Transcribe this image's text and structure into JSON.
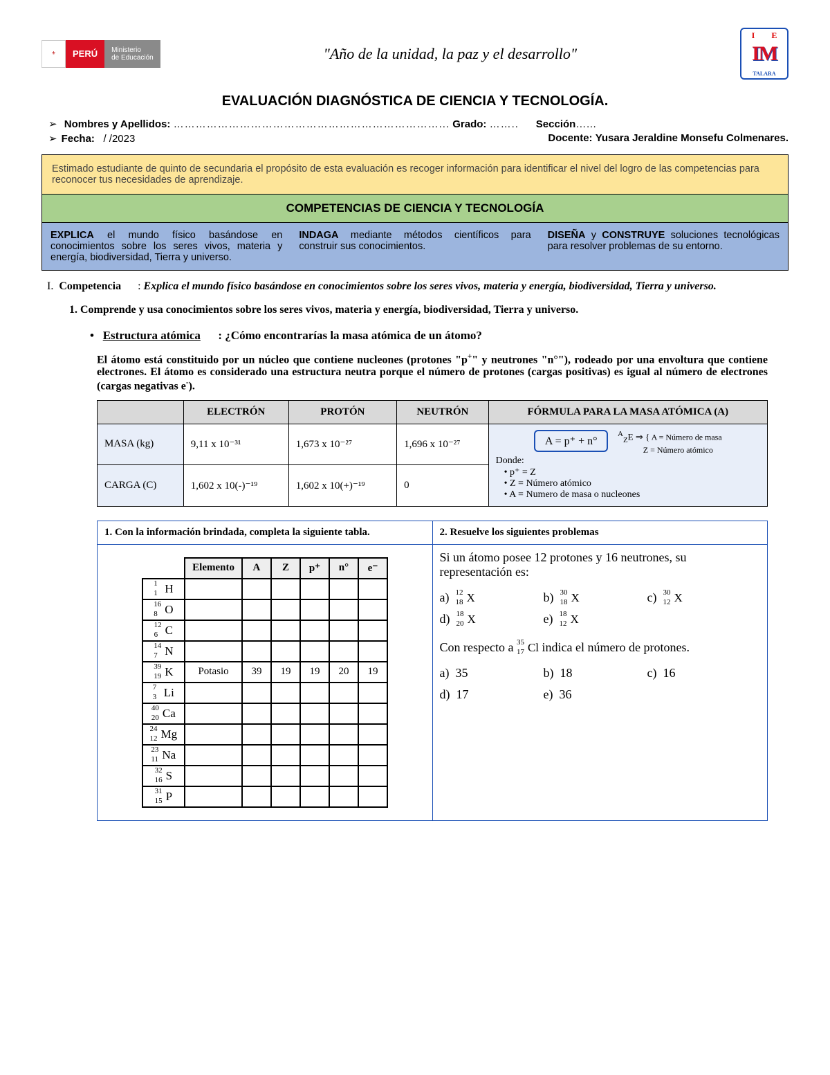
{
  "header": {
    "peru": "PERÚ",
    "ministry1": "Ministerio",
    "ministry2": "de Educación",
    "motto": "\"Año de la unidad, la paz y el desarrollo\"",
    "school_im": "IM",
    "school_loc": "TALARA"
  },
  "title": "EVALUACIÓN DIAGNÓSTICA DE CIENCIA Y TECNOLOGÍA.",
  "info": {
    "names_label": "Nombres y Apellidos:",
    "grade_label": "Grado:",
    "section_label": "Sección",
    "date_label": "Fecha:",
    "date_val": "/    /2023",
    "teacher_label": "Docente:",
    "teacher_name": "Yusara Jeraldine Monsefu Colmenares."
  },
  "yellow": "Estimado estudiante de quinto de secundaria el propósito de esta evaluación es recoger información para identificar el nivel del logro de las competencias para reconocer tus necesidades de aprendizaje.",
  "green": "COMPETENCIAS DE CIENCIA Y TECNOLOGÍA",
  "comp": {
    "c1b": "EXPLICA",
    "c1": " el mundo físico basándose en conocimientos sobre los seres vivos, materia y energía, biodiversidad, Tierra y universo.",
    "c2b": "INDAGA",
    "c2": " mediante métodos científicos para construir sus conocimientos.",
    "c3b1": "DISEÑA",
    "c3mid": " y ",
    "c3b2": "CONSTRUYE",
    "c3": " soluciones tecnológicas para resolver problemas de su entorno."
  },
  "compline": {
    "label": "Competencia",
    "text": "Explica el mundo físico basándose en conocimientos sobre los seres vivos, materia y energía, biodiversidad, Tierra y universo."
  },
  "sub1": "1.  Comprende y usa conocimientos sobre los seres vivos, materia y energía, biodiversidad, Tierra y universo.",
  "bullet": {
    "t1": "Estructura atómica",
    "t2": "¿Cómo encontrarías la masa atómica de un átomo?"
  },
  "particles": {
    "headers": [
      "",
      "ELECTRÓN",
      "PROTÓN",
      "NEUTRÓN",
      "FÓRMULA PARA LA MASA ATÓMICA (A)"
    ],
    "rows": [
      {
        "label": "MASA (kg)",
        "e": "9,11 x 10⁻³¹",
        "p": "1,673 x 10⁻²⁷",
        "n": "1,696 x 10⁻²⁷"
      },
      {
        "label": "CARGA (C)",
        "e": "1,602 x 10(-)⁻¹⁹",
        "p": "1,602 x 10(+)⁻¹⁹",
        "n": "0"
      }
    ],
    "formula": "A = p⁺ + n°",
    "donde": "Donde:",
    "l1": "• p⁺ = Z",
    "l2": "• Z = Número atómico",
    "l3": "• A = Numero de masa o nucleones",
    "legend1": "A = Número de masa",
    "legend2": "Z = Número atómico"
  },
  "exercise": {
    "h1": "1.   Con la información brindada, completa la siguiente tabla.",
    "h2": "2.   Resuelve los siguientes problemas",
    "cols": [
      "Elemento",
      "A",
      "Z",
      "p⁺",
      "n°",
      "e⁻"
    ],
    "rows": [
      {
        "a": "1",
        "z": "1",
        "s": "H"
      },
      {
        "a": "16",
        "z": "8",
        "s": "O"
      },
      {
        "a": "12",
        "z": "6",
        "s": "C"
      },
      {
        "a": "14",
        "z": "7",
        "s": "N"
      },
      {
        "a": "39",
        "z": "19",
        "s": "K",
        "vals": [
          "Potasio",
          "39",
          "19",
          "19",
          "20",
          "19"
        ]
      },
      {
        "a": "7",
        "z": "3",
        "s": "Li"
      },
      {
        "a": "40",
        "z": "20",
        "s": "Ca"
      },
      {
        "a": "24",
        "z": "12",
        "s": "Mg"
      },
      {
        "a": "23",
        "z": "11",
        "s": "Na"
      },
      {
        "a": "32",
        "z": "16",
        "s": "S"
      },
      {
        "a": "31",
        "z": "15",
        "s": "P"
      }
    ],
    "p1": "Si un átomo posee 12 protones y 16 neutrones, su representación es:",
    "opts1": [
      {
        "l": "a)",
        "a": "12",
        "z": "18",
        "s": "X"
      },
      {
        "l": "b)",
        "a": "30",
        "z": "18",
        "s": "X"
      },
      {
        "l": "c)",
        "a": "30",
        "z": "12",
        "s": "X"
      },
      {
        "l": "d)",
        "a": "18",
        "z": "20",
        "s": "X"
      },
      {
        "l": "e)",
        "a": "18",
        "z": "12",
        "s": "X"
      }
    ],
    "p2a": "Con respecto a ",
    "p2nuc": {
      "a": "35",
      "z": "17",
      "s": "Cl"
    },
    "p2b": " indica el número de protones.",
    "opts2": [
      {
        "l": "a)",
        "v": "35"
      },
      {
        "l": "b)",
        "v": "18"
      },
      {
        "l": "c)",
        "v": "16"
      },
      {
        "l": "d)",
        "v": "17"
      },
      {
        "l": "e)",
        "v": "36"
      }
    ]
  },
  "colors": {
    "yellow": "#fde599",
    "green": "#a8d08e",
    "blue": "#9cb5de",
    "border_blue": "#1a4fb5",
    "cell_blue": "#e8eef9"
  }
}
